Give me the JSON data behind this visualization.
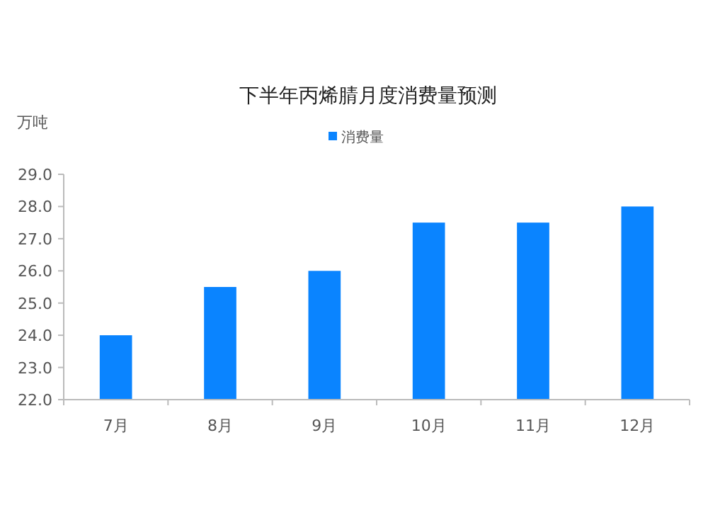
{
  "chart_data": {
    "type": "bar",
    "title": "下半年丙烯腈月度消费量预测",
    "ylabel": "万吨",
    "categories": [
      "7月",
      "8月",
      "9月",
      "10月",
      "11月",
      "12月"
    ],
    "series": [
      {
        "name": "消费量",
        "color": "#0a84ff",
        "values": [
          24.0,
          25.5,
          26.0,
          27.5,
          27.5,
          28.0
        ]
      }
    ],
    "ylim": [
      22,
      29
    ],
    "yticks": [
      {
        "value": 22,
        "label": "22.0"
      },
      {
        "value": 23,
        "label": "23.0"
      },
      {
        "value": 24,
        "label": "24.0"
      },
      {
        "value": 25,
        "label": "25.0"
      },
      {
        "value": 26,
        "label": "26.0"
      },
      {
        "value": 27,
        "label": "27.0"
      },
      {
        "value": 28,
        "label": "28.0"
      },
      {
        "value": 29,
        "label": "29.0"
      }
    ],
    "legend": "top",
    "grid": false
  }
}
